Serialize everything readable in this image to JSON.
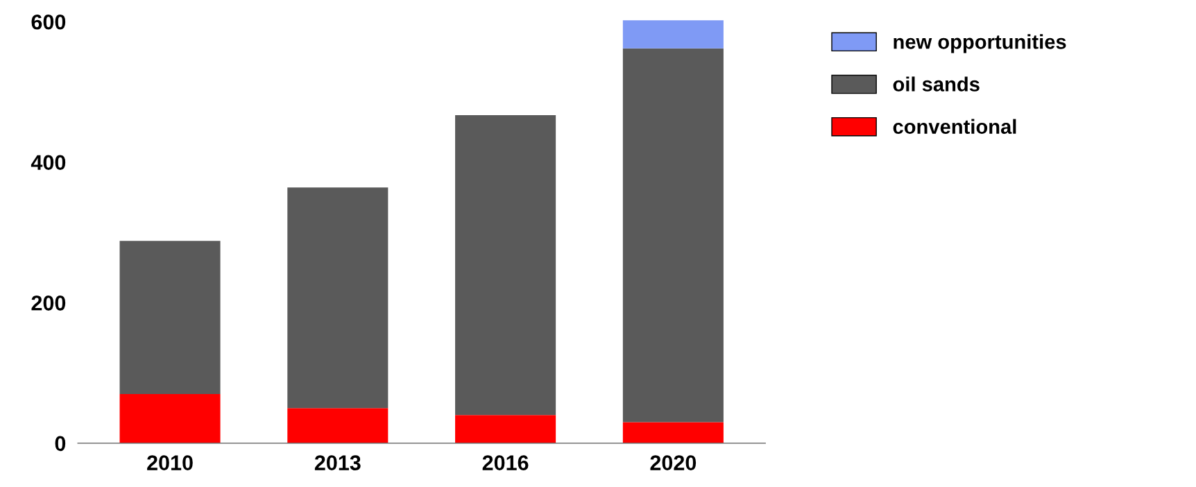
{
  "chart_data": {
    "type": "bar",
    "stacked": true,
    "categories": [
      "2010",
      "2013",
      "2016",
      "2020"
    ],
    "series": [
      {
        "name": "conventional",
        "color": "#ff0000",
        "values": [
          70,
          50,
          40,
          30
        ]
      },
      {
        "name": "oil sands",
        "color": "#5a5a5a",
        "values": [
          218,
          314,
          427,
          532
        ]
      },
      {
        "name": "new opportunities",
        "color": "#7f9af5",
        "values": [
          null,
          null,
          null,
          40
        ]
      }
    ],
    "ylim": [
      0,
      610
    ],
    "yticks": [
      0,
      200,
      400,
      600
    ],
    "grid": false,
    "legend": "top right"
  }
}
